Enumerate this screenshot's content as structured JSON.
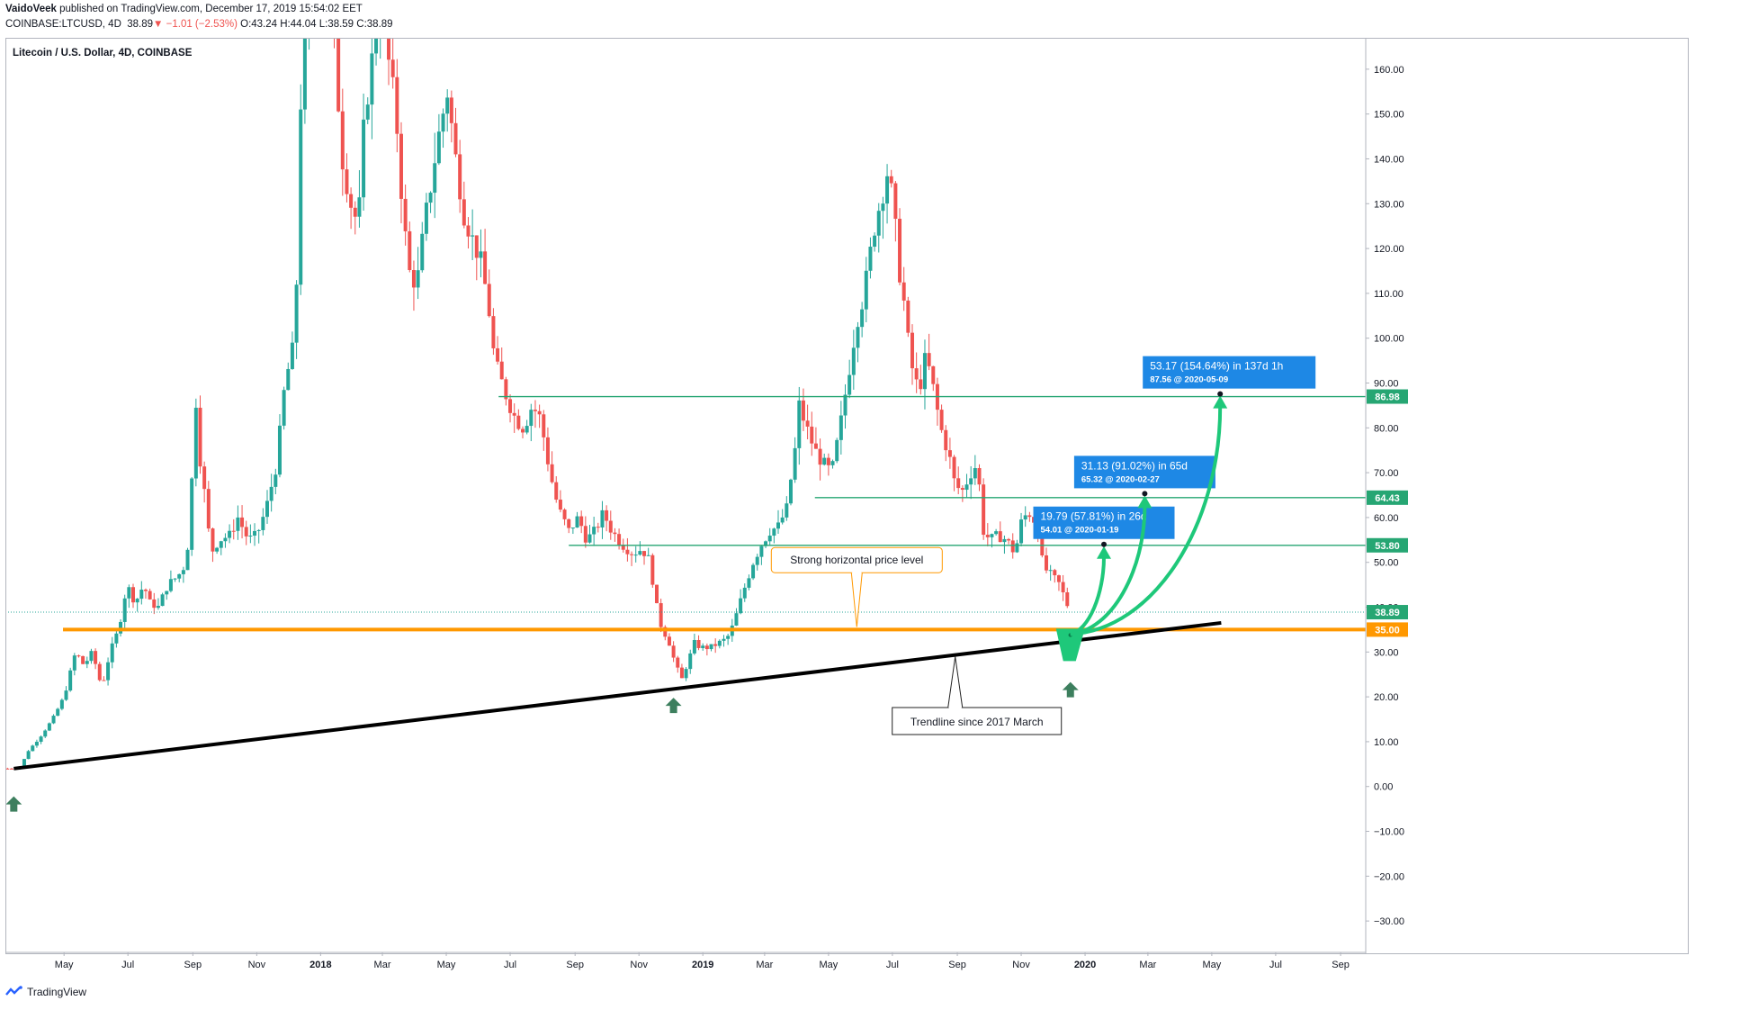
{
  "header": {
    "author": "VaidoVeek",
    "published_text": "published on TradingView.com, December 17, 2019 15:54:02 EET",
    "symbol": "COINBASE:LTCUSD, 4D",
    "last": "38.89",
    "change": "−1.01 (−2.53%)",
    "ohlc": "O:43.24 H:44.04 L:38.59 C:38.89"
  },
  "chart_title": "Litecoin / U.S. Dollar, 4D, COINBASE",
  "footer": {
    "brand": "TradingView"
  },
  "colors": {
    "up": "#26a69a",
    "down": "#ef5350",
    "green_label": "#26a673",
    "orange": "#ff9800",
    "black": "#000000",
    "projection": "#1ec87a",
    "blue_box": "#1e88e5",
    "arrow": "#3d7f5e"
  },
  "chart_data": {
    "type": "candlestick",
    "y_axis": {
      "range": [
        -37,
        167
      ],
      "ticks": [
        160,
        150,
        140,
        130,
        120,
        110,
        100,
        90,
        80,
        70,
        60,
        50,
        40,
        30,
        20,
        10,
        0,
        -10,
        -20,
        -30
      ],
      "tick_labels": [
        "160.00",
        "150.00",
        "140.00",
        "130.00",
        "120.00",
        "110.00",
        "100.00",
        "90.00",
        "80.00",
        "70.00",
        "60.00",
        "50.00",
        "40.00",
        "30.00",
        "20.00",
        "10.00",
        "0.00",
        "−10.00",
        "−20.00",
        "−30.00"
      ]
    },
    "x_axis": {
      "range": [
        "2017-03-06",
        "2020-09-25"
      ],
      "ticks": [
        {
          "date": "2017-05-01",
          "label": "May",
          "bold": false
        },
        {
          "date": "2017-07-01",
          "label": "Jul",
          "bold": false
        },
        {
          "date": "2017-09-01",
          "label": "Sep",
          "bold": false
        },
        {
          "date": "2017-11-01",
          "label": "Nov",
          "bold": false
        },
        {
          "date": "2018-01-01",
          "label": "2018",
          "bold": true
        },
        {
          "date": "2018-03-01",
          "label": "Mar",
          "bold": false
        },
        {
          "date": "2018-05-01",
          "label": "May",
          "bold": false
        },
        {
          "date": "2018-07-01",
          "label": "Jul",
          "bold": false
        },
        {
          "date": "2018-09-01",
          "label": "Sep",
          "bold": false
        },
        {
          "date": "2018-11-01",
          "label": "Nov",
          "bold": false
        },
        {
          "date": "2019-01-01",
          "label": "2019",
          "bold": true
        },
        {
          "date": "2019-03-01",
          "label": "Mar",
          "bold": false
        },
        {
          "date": "2019-05-01",
          "label": "May",
          "bold": false
        },
        {
          "date": "2019-07-01",
          "label": "Jul",
          "bold": false
        },
        {
          "date": "2019-09-01",
          "label": "Sep",
          "bold": false
        },
        {
          "date": "2019-11-01",
          "label": "Nov",
          "bold": false
        },
        {
          "date": "2020-01-01",
          "label": "2020",
          "bold": true
        },
        {
          "date": "2020-03-01",
          "label": "Mar",
          "bold": false
        },
        {
          "date": "2020-05-01",
          "label": "May",
          "bold": false
        },
        {
          "date": "2020-07-01",
          "label": "Jul",
          "bold": false
        },
        {
          "date": "2020-09-01",
          "label": "Sep",
          "bold": false
        }
      ]
    },
    "price_path": [
      [
        "2017-03-08",
        4.0
      ],
      [
        "2017-03-20",
        4.2
      ],
      [
        "2017-03-28",
        8
      ],
      [
        "2017-04-08",
        11
      ],
      [
        "2017-04-20",
        15
      ],
      [
        "2017-05-01",
        20
      ],
      [
        "2017-05-12",
        30
      ],
      [
        "2017-05-20",
        27
      ],
      [
        "2017-05-28",
        30
      ],
      [
        "2017-06-06",
        22
      ],
      [
        "2017-06-14",
        30
      ],
      [
        "2017-06-22",
        35
      ],
      [
        "2017-06-30",
        45
      ],
      [
        "2017-07-08",
        41
      ],
      [
        "2017-07-16",
        45
      ],
      [
        "2017-07-22",
        41
      ],
      [
        "2017-07-30",
        40
      ],
      [
        "2017-08-08",
        45
      ],
      [
        "2017-08-18",
        47
      ],
      [
        "2017-08-26",
        50
      ],
      [
        "2017-09-01",
        72
      ],
      [
        "2017-09-04",
        86
      ],
      [
        "2017-09-08",
        73
      ],
      [
        "2017-09-14",
        62
      ],
      [
        "2017-09-18",
        52
      ],
      [
        "2017-09-26",
        55
      ],
      [
        "2017-10-06",
        56
      ],
      [
        "2017-10-14",
        60
      ],
      [
        "2017-10-24",
        55
      ],
      [
        "2017-11-01",
        56
      ],
      [
        "2017-11-10",
        62
      ],
      [
        "2017-11-20",
        72
      ],
      [
        "2017-11-28",
        90
      ],
      [
        "2017-12-08",
        100
      ],
      [
        "2017-12-12",
        150
      ],
      [
        "2017-12-19",
        170
      ],
      [
        "2017-12-28",
        180
      ],
      [
        "2018-01-06",
        180
      ],
      [
        "2018-01-14",
        165
      ],
      [
        "2018-01-22",
        140
      ],
      [
        "2018-01-30",
        130
      ],
      [
        "2018-02-06",
        125
      ],
      [
        "2018-02-12",
        150
      ],
      [
        "2018-02-18",
        160
      ],
      [
        "2018-02-26",
        175
      ],
      [
        "2018-03-08",
        160
      ],
      [
        "2018-03-14",
        150
      ],
      [
        "2018-03-20",
        130
      ],
      [
        "2018-03-26",
        115
      ],
      [
        "2018-04-03",
        112
      ],
      [
        "2018-04-10",
        125
      ],
      [
        "2018-04-20",
        140
      ],
      [
        "2018-04-26",
        148
      ],
      [
        "2018-05-02",
        155
      ],
      [
        "2018-05-10",
        140
      ],
      [
        "2018-05-18",
        128
      ],
      [
        "2018-05-26",
        122
      ],
      [
        "2018-06-02",
        118
      ],
      [
        "2018-06-10",
        108
      ],
      [
        "2018-06-16",
        95
      ],
      [
        "2018-06-26",
        88
      ],
      [
        "2018-07-06",
        82
      ],
      [
        "2018-07-14",
        80
      ],
      [
        "2018-07-22",
        85
      ],
      [
        "2018-07-30",
        82
      ],
      [
        "2018-08-08",
        70
      ],
      [
        "2018-08-16",
        62
      ],
      [
        "2018-08-26",
        57
      ],
      [
        "2018-09-04",
        60
      ],
      [
        "2018-09-12",
        55
      ],
      [
        "2018-09-20",
        57
      ],
      [
        "2018-09-28",
        61
      ],
      [
        "2018-10-06",
        57
      ],
      [
        "2018-10-16",
        54
      ],
      [
        "2018-10-26",
        52
      ],
      [
        "2018-11-04",
        53
      ],
      [
        "2018-11-12",
        50
      ],
      [
        "2018-11-16",
        42
      ],
      [
        "2018-11-22",
        36
      ],
      [
        "2018-11-30",
        32
      ],
      [
        "2018-12-06",
        27
      ],
      [
        "2018-12-12",
        24
      ],
      [
        "2018-12-18",
        28
      ],
      [
        "2018-12-24",
        32
      ],
      [
        "2018-12-30",
        31
      ],
      [
        "2019-01-08",
        31
      ],
      [
        "2019-01-16",
        32
      ],
      [
        "2019-01-24",
        33
      ],
      [
        "2019-01-30",
        36
      ],
      [
        "2019-02-08",
        43
      ],
      [
        "2019-02-18",
        50
      ],
      [
        "2019-02-26",
        54
      ],
      [
        "2019-03-06",
        57
      ],
      [
        "2019-03-14",
        58
      ],
      [
        "2019-03-22",
        62
      ],
      [
        "2019-03-30",
        75
      ],
      [
        "2019-04-03",
        85
      ],
      [
        "2019-04-10",
        80
      ],
      [
        "2019-04-18",
        75
      ],
      [
        "2019-04-26",
        72
      ],
      [
        "2019-05-04",
        70
      ],
      [
        "2019-05-12",
        80
      ],
      [
        "2019-05-20",
        92
      ],
      [
        "2019-05-28",
        104
      ],
      [
        "2019-06-04",
        110
      ],
      [
        "2019-06-14",
        125
      ],
      [
        "2019-06-22",
        133
      ],
      [
        "2019-06-26",
        137
      ],
      [
        "2019-07-02",
        130
      ],
      [
        "2019-07-06",
        118
      ],
      [
        "2019-07-12",
        108
      ],
      [
        "2019-07-18",
        95
      ],
      [
        "2019-07-26",
        88
      ],
      [
        "2019-08-02",
        96
      ],
      [
        "2019-08-08",
        90
      ],
      [
        "2019-08-16",
        80
      ],
      [
        "2019-08-24",
        74
      ],
      [
        "2019-08-30",
        67
      ],
      [
        "2019-09-06",
        66
      ],
      [
        "2019-09-14",
        70
      ],
      [
        "2019-09-20",
        72
      ],
      [
        "2019-09-26",
        57
      ],
      [
        "2019-10-02",
        55
      ],
      [
        "2019-10-10",
        56
      ],
      [
        "2019-10-18",
        55
      ],
      [
        "2019-10-26",
        52
      ],
      [
        "2019-11-02",
        60
      ],
      [
        "2019-11-10",
        61
      ],
      [
        "2019-11-16",
        58
      ],
      [
        "2019-11-22",
        49
      ],
      [
        "2019-11-30",
        47
      ],
      [
        "2019-12-08",
        45
      ],
      [
        "2019-12-17",
        38.9
      ]
    ],
    "horizontal_levels": [
      {
        "value": 86.98,
        "label": "86.98",
        "from": "2018-06-20",
        "color": "green"
      },
      {
        "value": 64.43,
        "label": "64.43",
        "from": "2019-04-18",
        "color": "green"
      },
      {
        "value": 53.8,
        "label": "53.80",
        "from": "2018-08-26",
        "color": "green"
      },
      {
        "value": 35.0,
        "label": "35.00",
        "from": "2017-04-30",
        "color": "orange"
      }
    ],
    "current_price": {
      "value": 38.89,
      "label": "38.89"
    },
    "trendline": {
      "from": [
        "2017-03-14",
        4.0
      ],
      "to": [
        "2020-05-10",
        36.5
      ],
      "label": "Trendline since 2017 March"
    },
    "annotations": [
      {
        "text": "Strong horizontal price level",
        "anchor": [
          "2019-05-28",
          35.0
        ],
        "box_center": [
          "2019-05-28",
          50.5
        ]
      }
    ],
    "targets": [
      {
        "target_date": "2020-01-19",
        "target_value": 54.01,
        "line1": "19.79 (57.81%) in 26d",
        "line2": "54.01 @ 2020-01-19"
      },
      {
        "target_date": "2020-02-27",
        "target_value": 65.32,
        "line1": "31.13 (91.02%) in 65d",
        "line2": "65.32 @ 2020-02-27"
      },
      {
        "target_date": "2020-05-09",
        "target_value": 87.56,
        "line1": "53.17 (154.64%) in 137d 1h",
        "line2": "87.56 @ 2020-05-09"
      }
    ],
    "bounce_arrows": [
      [
        "2017-03-14",
        -4.0
      ],
      [
        "2018-12-04",
        18.0
      ],
      [
        "2019-12-18",
        21.5
      ]
    ],
    "projection_origin": [
      "2019-12-18",
      34.0
    ]
  }
}
